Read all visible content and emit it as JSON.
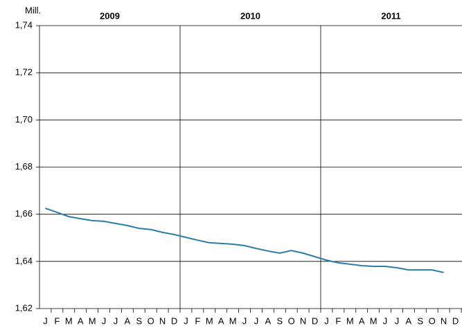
{
  "chart_data": {
    "type": "line",
    "unit_label": "Mill.",
    "years": [
      "2009",
      "2010",
      "2011"
    ],
    "categories": [
      "J",
      "F",
      "M",
      "A",
      "M",
      "J",
      "J",
      "A",
      "S",
      "O",
      "N",
      "D",
      "J",
      "F",
      "M",
      "A",
      "M",
      "J",
      "J",
      "A",
      "S",
      "O",
      "N",
      "D",
      "J",
      "F",
      "M",
      "A",
      "M",
      "J",
      "J",
      "A",
      "S",
      "O",
      "N",
      "D"
    ],
    "series": [
      {
        "name": "Mill.",
        "color": "#2a7ca6",
        "values": [
          1.6625,
          1.6608,
          1.659,
          1.6581,
          1.6573,
          1.657,
          1.6561,
          1.6552,
          1.654,
          1.6535,
          1.6523,
          1.6514,
          1.6502,
          1.649,
          1.6479,
          1.6476,
          1.6473,
          1.6467,
          1.6455,
          1.6444,
          1.6435,
          1.6446,
          1.6435,
          1.642,
          1.6405,
          1.6394,
          1.6388,
          1.6382,
          1.6379,
          1.6379,
          1.6373,
          1.6364,
          1.6364,
          1.6364,
          1.6353,
          null
        ]
      }
    ],
    "ylim": [
      1.62,
      1.74
    ],
    "yticks": [
      {
        "value": 1.62,
        "label": "1,62"
      },
      {
        "value": 1.64,
        "label": "1,64"
      },
      {
        "value": 1.66,
        "label": "1,66"
      },
      {
        "value": 1.68,
        "label": "1,68"
      },
      {
        "value": 1.7,
        "label": "1,70"
      },
      {
        "value": 1.72,
        "label": "1,72"
      },
      {
        "value": 1.74,
        "label": "1,74"
      }
    ],
    "grid": true
  }
}
